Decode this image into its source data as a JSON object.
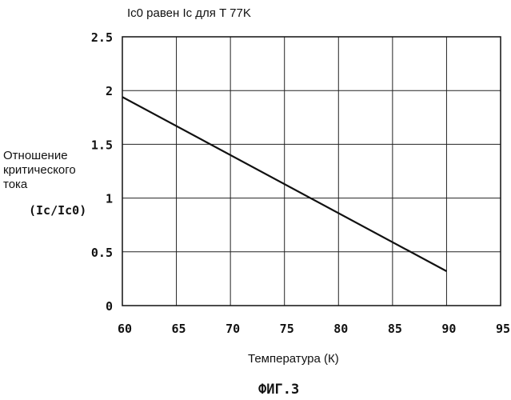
{
  "chart_data": {
    "type": "line",
    "annotation": "Ic0 равен Ic для T 77K",
    "ylabel_lines": [
      "Отношение",
      "критического",
      "тока"
    ],
    "ylabel_unit": "(Ic/Ic0)",
    "xlabel": "Температура (К)",
    "caption": "ФИГ.3",
    "xlim": [
      60,
      95
    ],
    "ylim": [
      0,
      2.5
    ],
    "x_ticks": [
      "60",
      "65",
      "70",
      "75",
      "80",
      "85",
      "90",
      "95"
    ],
    "y_ticks": [
      "0",
      "0.5",
      "1",
      "1.5",
      "2",
      "2.5"
    ],
    "grid": true,
    "series": [
      {
        "x": [
          60,
          90
        ],
        "y": [
          1.94,
          0.32
        ]
      }
    ]
  }
}
